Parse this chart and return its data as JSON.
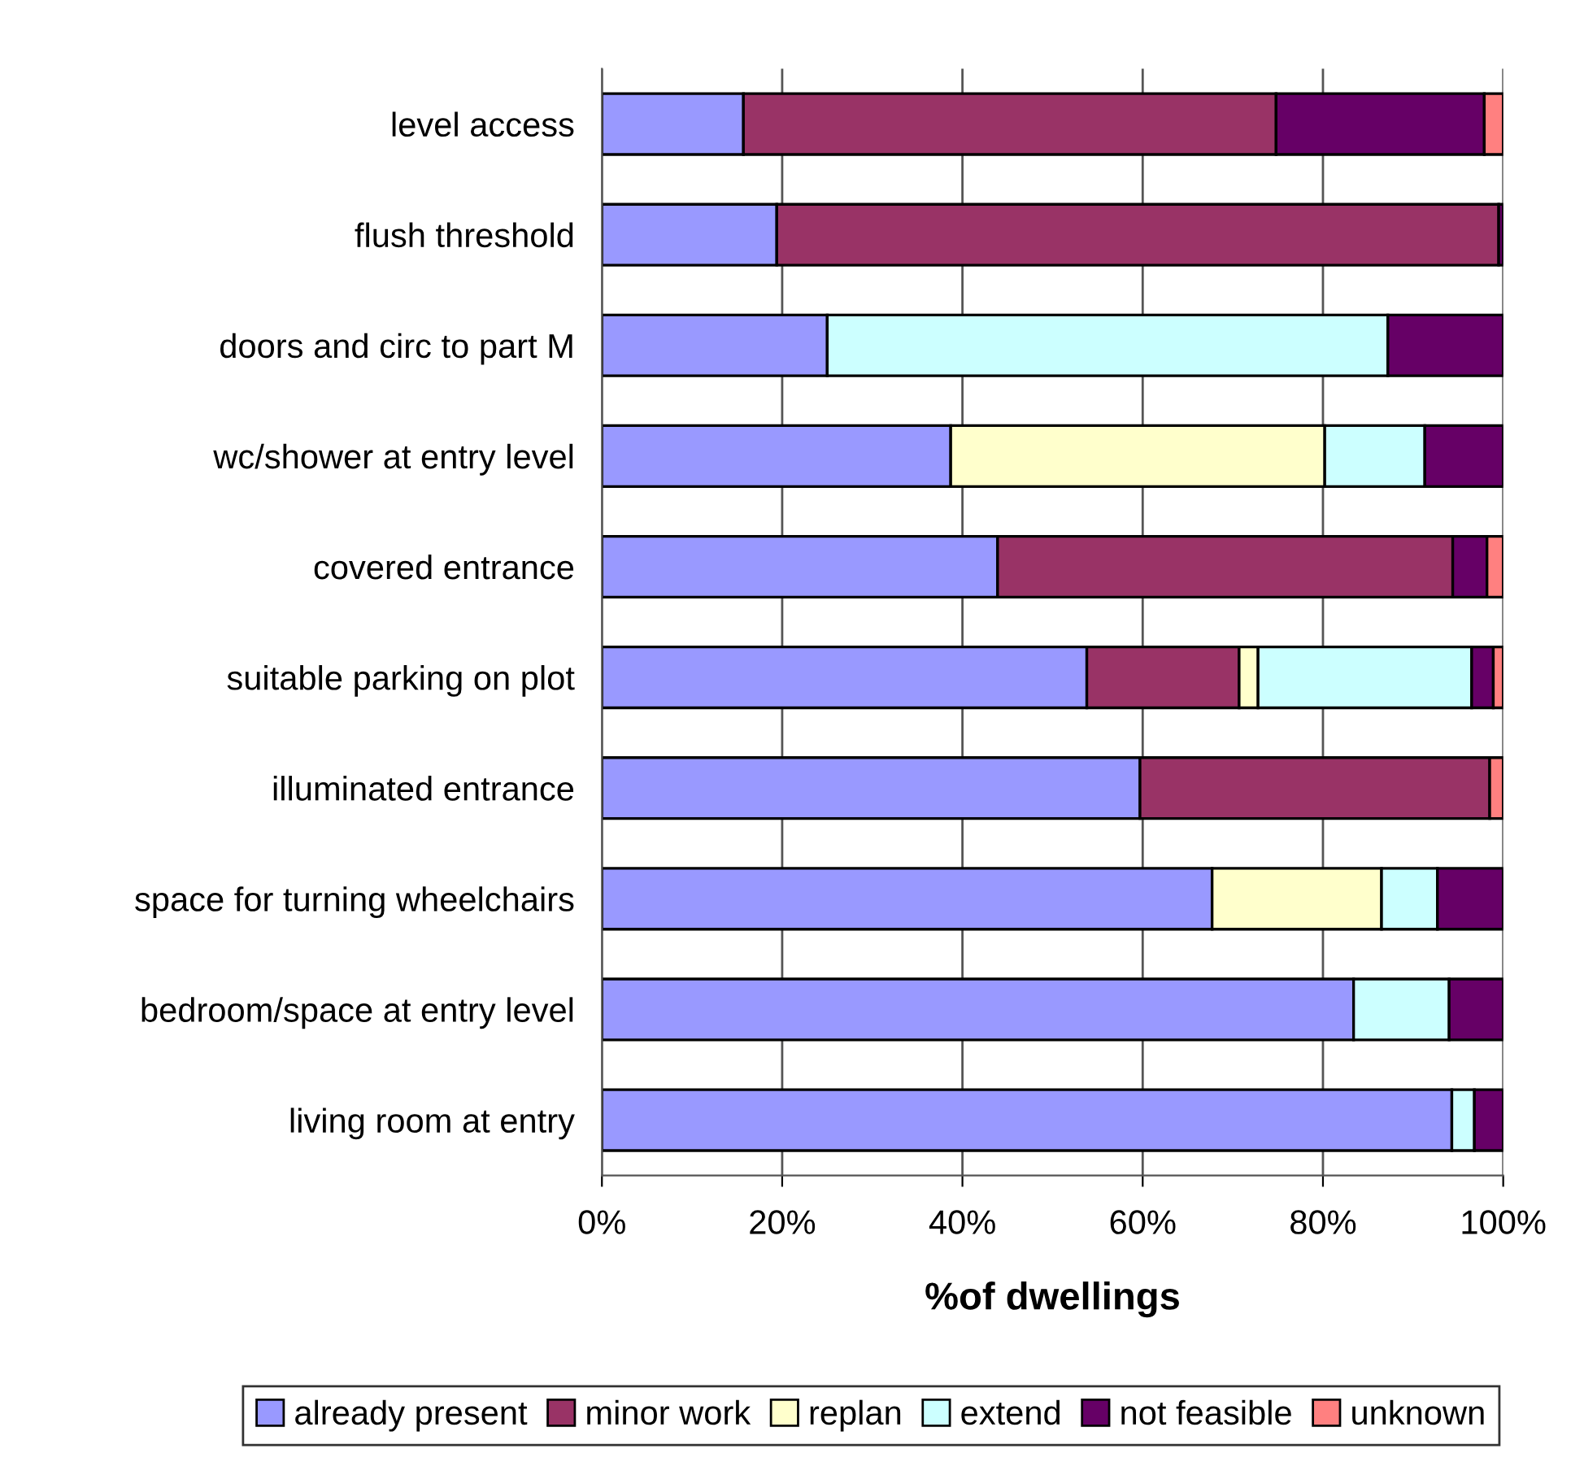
{
  "chart_data": {
    "type": "bar",
    "orientation": "horizontal",
    "stacked": true,
    "xlabel": "%of dwellings",
    "categories": [
      "level access",
      "flush threshold",
      "doors and circ to part M",
      "wc/shower at entry level",
      "covered entrance",
      "suitable parking on plot",
      "illuminated entrance",
      "space for turning wheelchairs",
      "bedroom/space at entry level",
      "living room at entry"
    ],
    "series": [
      {
        "name": "already present",
        "color": "#9999ff",
        "values": [
          15.7,
          19.4,
          25.0,
          38.7,
          43.9,
          53.8,
          59.7,
          67.7,
          83.4,
          94.3
        ]
      },
      {
        "name": "minor work",
        "color": "#993366",
        "values": [
          59.1,
          80.1,
          null,
          null,
          50.5,
          16.9,
          38.8,
          null,
          null,
          null
        ]
      },
      {
        "name": "replan",
        "color": "#ffffcc",
        "values": [
          null,
          null,
          null,
          41.5,
          null,
          2.1,
          null,
          18.8,
          null,
          null
        ]
      },
      {
        "name": "extend",
        "color": "#ccffff",
        "values": [
          null,
          null,
          62.2,
          11.1,
          null,
          23.7,
          null,
          6.2,
          10.6,
          2.5
        ]
      },
      {
        "name": "not feasible",
        "color": "#660066",
        "values": [
          23.1,
          0.5,
          12.8,
          8.7,
          3.8,
          2.4,
          null,
          7.3,
          6.0,
          3.2
        ]
      },
      {
        "name": "unknown",
        "color": "#ff8080",
        "values": [
          2.1,
          null,
          null,
          null,
          1.8,
          1.1,
          1.5,
          null,
          null,
          null
        ]
      }
    ],
    "xlim": [
      0,
      100
    ],
    "xticks": [
      {
        "value": 0,
        "label": "0%"
      },
      {
        "value": 20,
        "label": "20%"
      },
      {
        "value": 40,
        "label": "40%"
      },
      {
        "value": 60,
        "label": "60%"
      },
      {
        "value": 80,
        "label": "80%"
      },
      {
        "value": 100,
        "label": "100%"
      }
    ],
    "grid": "x",
    "legend": "bottom"
  }
}
